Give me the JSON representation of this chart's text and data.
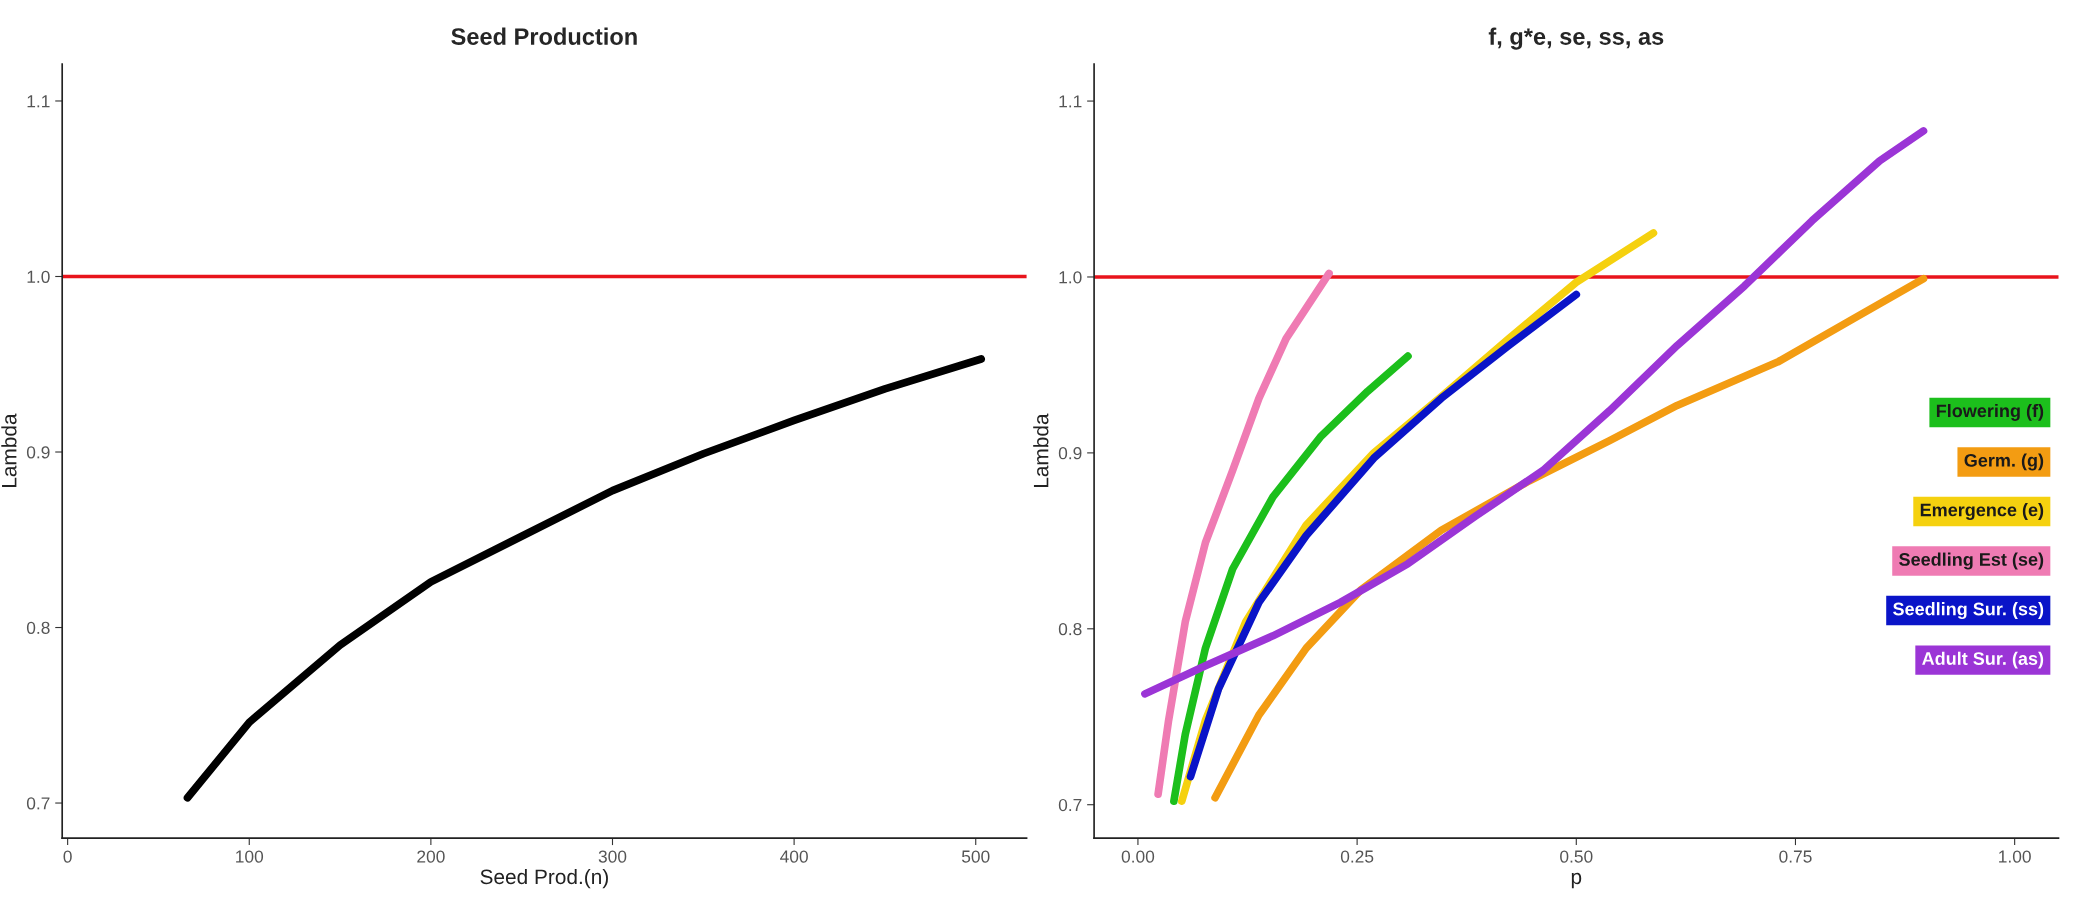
{
  "chart_data": [
    {
      "type": "line",
      "title": "Seed Production",
      "xlabel": "Seed Prod.(n)",
      "ylabel": "Lambda",
      "xlim": [
        -3,
        528
      ],
      "xticks": [
        0,
        100,
        200,
        300,
        400,
        500
      ],
      "ylim": [
        0.68,
        1.121
      ],
      "yticks": [
        0.7,
        0.8,
        0.9,
        {
          "value": 1.0,
          "label": "1.0"
        },
        1.1
      ],
      "grid": false,
      "legend": false,
      "ref_lines": [
        {
          "axis": "y",
          "value": 1.0,
          "color": "#e8141c"
        }
      ],
      "series": [
        {
          "color": "#000000",
          "x": [
            66,
            100,
            150,
            200,
            250,
            300,
            350,
            400,
            450,
            503
          ],
          "values": [
            0.703,
            0.746,
            0.79,
            0.826,
            0.852,
            0.878,
            0.899,
            0.918,
            0.936,
            0.953
          ]
        }
      ]
    },
    {
      "type": "line",
      "title": "f, g*e, se, ss, as",
      "xlabel": "p",
      "ylabel": "Lambda",
      "xlim": [
        -0.05,
        1.05
      ],
      "xticks": [
        {
          "value": 0,
          "label": "0.00"
        },
        0.25,
        {
          "value": 0.5,
          "label": "0.50"
        },
        0.75,
        {
          "value": 1.0,
          "label": "1.00"
        }
      ],
      "ylim": [
        0.681,
        1.121
      ],
      "yticks": [
        0.7,
        0.8,
        0.9,
        {
          "value": 1.0,
          "label": "1.0"
        },
        1.1
      ],
      "grid": false,
      "legend": "right",
      "ref_lines": [
        {
          "axis": "y",
          "value": 1.0,
          "color": "#e8141c"
        }
      ],
      "series": [
        {
          "name": "Flowering (f)",
          "color": "#1cbf1c",
          "x": [
            0.041,
            0.054,
            0.077,
            0.108,
            0.154,
            0.208,
            0.262,
            0.308
          ],
          "values": [
            0.702,
            0.74,
            0.789,
            0.834,
            0.875,
            0.909,
            0.935,
            0.955
          ]
        },
        {
          "name": "Germ. (g)",
          "color": "#f39c12",
          "x": [
            0.088,
            0.138,
            0.192,
            0.254,
            0.346,
            0.446,
            0.538,
            0.615,
            0.731,
            0.815,
            0.896
          ],
          "values": [
            0.704,
            0.751,
            0.789,
            0.822,
            0.856,
            0.884,
            0.907,
            0.927,
            0.952,
            0.976,
            0.999
          ]
        },
        {
          "name": "Emergence (e)",
          "color": "#f5d10f",
          "x": [
            0.05,
            0.077,
            0.123,
            0.192,
            0.269,
            0.346,
            0.423,
            0.5,
            0.588
          ],
          "values": [
            0.702,
            0.748,
            0.804,
            0.859,
            0.9,
            0.932,
            0.965,
            0.997,
            1.025
          ]
        },
        {
          "name": "Seedling Est (se)",
          "color": "#ef7bb3",
          "x": [
            0.023,
            0.035,
            0.054,
            0.077,
            0.108,
            0.138,
            0.169,
            0.218
          ],
          "values": [
            0.706,
            0.748,
            0.804,
            0.849,
            0.89,
            0.931,
            0.965,
            1.002
          ]
        },
        {
          "name": "Seedling Sur. (ss)",
          "color": "#0a14c8",
          "x": [
            0.06,
            0.092,
            0.138,
            0.192,
            0.269,
            0.346,
            0.423,
            0.5
          ],
          "values": [
            0.716,
            0.766,
            0.815,
            0.853,
            0.897,
            0.931,
            0.961,
            0.99
          ]
        },
        {
          "name": "Adult Sur. (as)",
          "color": "#9b35d6",
          "x": [
            0.008,
            0.077,
            0.154,
            0.231,
            0.308,
            0.385,
            0.462,
            0.538,
            0.615,
            0.692,
            0.769,
            0.846,
            0.896
          ],
          "values": [
            0.763,
            0.779,
            0.796,
            0.815,
            0.837,
            0.864,
            0.89,
            0.924,
            0.961,
            0.995,
            1.032,
            1.066,
            1.083
          ]
        }
      ]
    }
  ]
}
